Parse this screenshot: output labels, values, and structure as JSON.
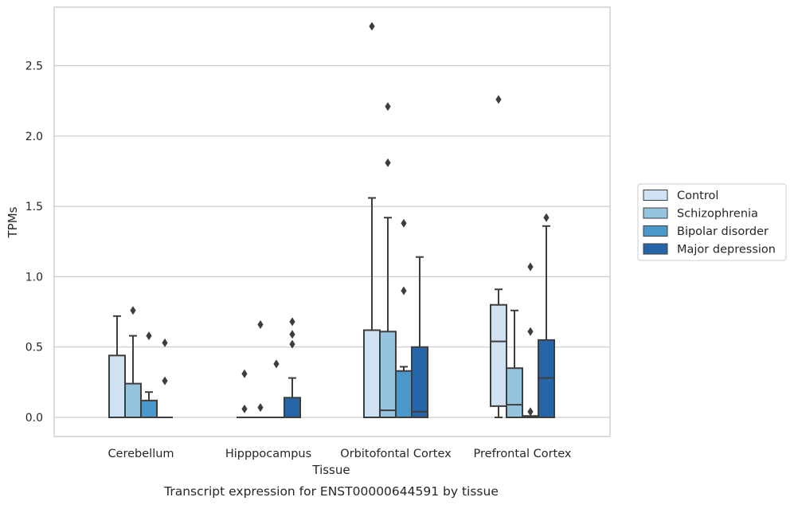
{
  "chart_data": {
    "type": "box",
    "title": "Transcript expression for ENST00000644591 by tissue",
    "xlabel": "Tissue",
    "ylabel": "TPMs",
    "ylim": [
      -0.13,
      2.93
    ],
    "yticks": [
      0.0,
      0.5,
      1.0,
      1.5,
      2.0,
      2.5
    ],
    "ytick_labels": [
      "0.0",
      "0.5",
      "1.0",
      "1.5",
      "2.0",
      "2.5"
    ],
    "categories": [
      "Cerebellum",
      "Hipppocampus",
      "Orbitofontal Cortex",
      "Prefrontal Cortex"
    ],
    "grid": "horizontal",
    "legend_position": "right",
    "series": [
      {
        "name": "Control",
        "color": "#d0e1f2",
        "boxes": [
          {
            "q1": 0.0,
            "median": 0.0,
            "q3": 0.44,
            "whisker_low": 0.0,
            "whisker_high": 0.72,
            "outliers": []
          },
          {
            "q1": 0.0,
            "median": 0.0,
            "q3": 0.0,
            "whisker_low": 0.0,
            "whisker_high": 0.0,
            "outliers": [
              0.06,
              0.31
            ]
          },
          {
            "q1": 0.0,
            "median": 0.0,
            "q3": 0.62,
            "whisker_low": 0.0,
            "whisker_high": 1.56,
            "outliers": [
              2.78
            ]
          },
          {
            "q1": 0.08,
            "median": 0.54,
            "q3": 0.8,
            "whisker_low": 0.0,
            "whisker_high": 0.91,
            "outliers": [
              2.26
            ]
          }
        ]
      },
      {
        "name": "Schizophrenia",
        "color": "#94c4df",
        "boxes": [
          {
            "q1": 0.0,
            "median": 0.0,
            "q3": 0.24,
            "whisker_low": 0.0,
            "whisker_high": 0.58,
            "outliers": [
              0.76
            ]
          },
          {
            "q1": 0.0,
            "median": 0.0,
            "q3": 0.0,
            "whisker_low": 0.0,
            "whisker_high": 0.0,
            "outliers": [
              0.07,
              0.66
            ]
          },
          {
            "q1": 0.0,
            "median": 0.05,
            "q3": 0.61,
            "whisker_low": 0.0,
            "whisker_high": 1.42,
            "outliers": [
              1.81,
              2.21
            ]
          },
          {
            "q1": 0.0,
            "median": 0.09,
            "q3": 0.35,
            "whisker_low": 0.0,
            "whisker_high": 0.76,
            "outliers": []
          }
        ]
      },
      {
        "name": "Bipolar disorder",
        "color": "#4a98c9",
        "boxes": [
          {
            "q1": 0.0,
            "median": 0.0,
            "q3": 0.12,
            "whisker_low": 0.0,
            "whisker_high": 0.18,
            "outliers": [
              0.58
            ]
          },
          {
            "q1": 0.0,
            "median": 0.0,
            "q3": 0.0,
            "whisker_low": 0.0,
            "whisker_high": 0.0,
            "outliers": [
              0.38
            ]
          },
          {
            "q1": 0.0,
            "median": 0.0,
            "q3": 0.33,
            "whisker_low": 0.0,
            "whisker_high": 0.36,
            "outliers": [
              0.9,
              1.38
            ]
          },
          {
            "q1": 0.0,
            "median": 0.0,
            "q3": 0.01,
            "whisker_low": 0.0,
            "whisker_high": 0.01,
            "outliers": [
              0.04,
              0.61,
              1.07
            ]
          }
        ]
      },
      {
        "name": "Major depression",
        "color": "#2666a8",
        "boxes": [
          {
            "q1": 0.0,
            "median": 0.0,
            "q3": 0.0,
            "whisker_low": 0.0,
            "whisker_high": 0.0,
            "outliers": [
              0.26,
              0.53
            ]
          },
          {
            "q1": 0.0,
            "median": 0.0,
            "q3": 0.14,
            "whisker_low": 0.0,
            "whisker_high": 0.28,
            "outliers": [
              0.52,
              0.59,
              0.68
            ]
          },
          {
            "q1": 0.0,
            "median": 0.04,
            "q3": 0.5,
            "whisker_low": 0.0,
            "whisker_high": 1.14,
            "outliers": []
          },
          {
            "q1": 0.0,
            "median": 0.28,
            "q3": 0.55,
            "whisker_low": 0.0,
            "whisker_high": 1.36,
            "outliers": [
              1.42
            ]
          }
        ]
      }
    ],
    "colors": {
      "grid": "#cccccc",
      "frame": "#cccccc",
      "box_edge": "#3d3d3d",
      "text": "#262626"
    }
  }
}
